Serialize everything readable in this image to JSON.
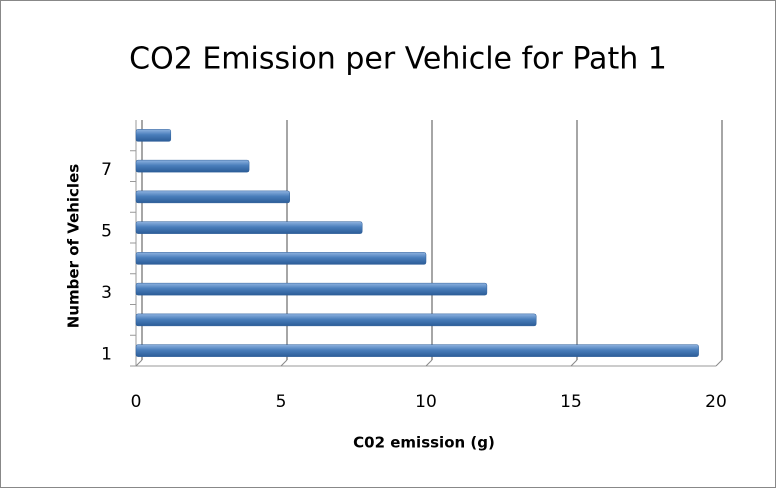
{
  "chart_data": {
    "type": "bar",
    "orientation": "horizontal",
    "title": "CO2 Emission per Vehicle for Path 1",
    "x_label": "C02 emission (g)",
    "y_label": "Number of Vehicles",
    "categories": [
      "1",
      null,
      "3",
      null,
      "5",
      null,
      "7",
      null
    ],
    "values": [
      19.4,
      13.8,
      12.1,
      10.0,
      7.8,
      5.3,
      3.9,
      1.2
    ],
    "color": "#4a7ebb",
    "xlim": [
      0,
      20
    ],
    "xticks": [
      0,
      5,
      10,
      15,
      20
    ],
    "grid": true
  }
}
